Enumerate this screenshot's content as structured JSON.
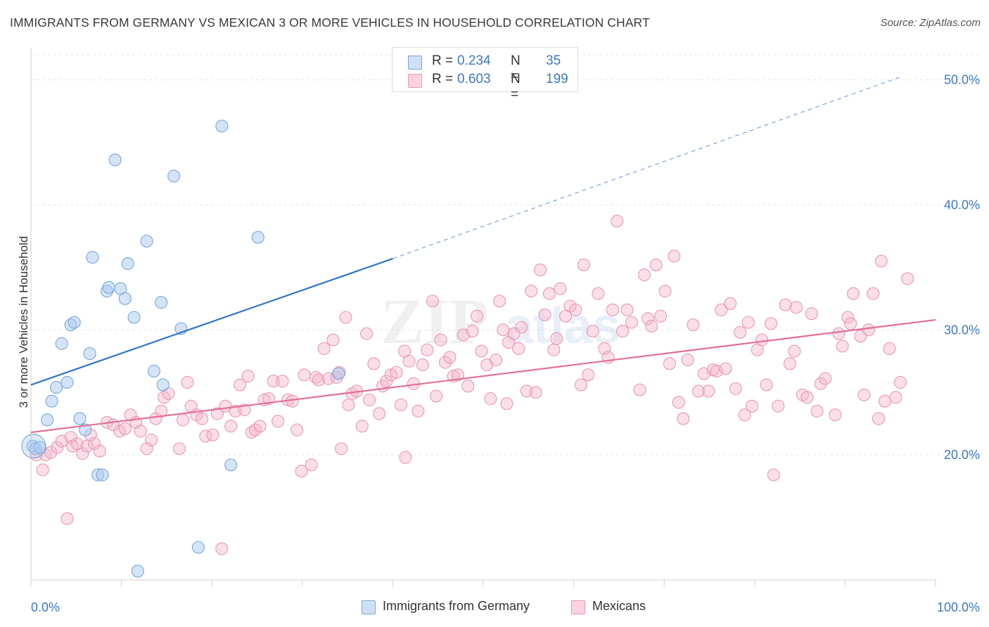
{
  "header": {
    "title": "IMMIGRANTS FROM GERMANY VS MEXICAN 3 OR MORE VEHICLES IN HOUSEHOLD CORRELATION CHART",
    "source": "Source: ZipAtlas.com"
  },
  "legend_top": {
    "rows": [
      {
        "r_label": "R =",
        "r_value": "0.234",
        "n_label": "N =",
        "n_value": "35",
        "color": "#a9c9f0"
      },
      {
        "r_label": "R =",
        "r_value": "0.603",
        "n_label": "N =",
        "n_value": "199",
        "color": "#f5b6cb"
      }
    ]
  },
  "legend_bottom": {
    "items": [
      {
        "label": "Immigrants from Germany",
        "color": "#a9c9f0"
      },
      {
        "label": "Mexicans",
        "color": "#f5b6cb"
      }
    ]
  },
  "watermark": {
    "zip": "ZIP",
    "atlas": "atlas"
  },
  "chart_data": {
    "type": "scatter",
    "title": "IMMIGRANTS FROM GERMANY VS MEXICAN 3 OR MORE VEHICLES IN HOUSEHOLD CORRELATION CHART",
    "xlabel": "",
    "ylabel": "3 or more Vehicles in Household",
    "xlim": [
      0,
      100
    ],
    "ylim": [
      10,
      52
    ],
    "x_tick_labels": [
      "0.0%",
      "100.0%"
    ],
    "y_ticks": [
      20,
      30,
      40,
      50
    ],
    "y_tick_labels": [
      "20.0%",
      "30.0%",
      "40.0%",
      "50.0%"
    ],
    "grid": true,
    "legend_position": "top-center",
    "colors": {
      "germany_fill": "#a9c9f0",
      "germany_stroke": "#7aa6d8",
      "germany_line": "#2f74c8",
      "mexico_fill": "#f5b6cb",
      "mexico_stroke": "#e89ab3",
      "mexico_line": "#e26f98",
      "axis_label": "#3b78c6",
      "grid": "#e6e6e6"
    },
    "series": [
      {
        "name": "Immigrants from Germany",
        "r": 0.234,
        "n": 35,
        "trend": {
          "x0": 0,
          "y0": 25.6,
          "x1": 40,
          "y1": 35.7,
          "dash_to_x": 96,
          "dash_to_y": 50.2
        },
        "points": [
          [
            0.2,
            20.7
          ],
          [
            0.5,
            20.5
          ],
          [
            1.0,
            20.6
          ],
          [
            1.8,
            22.8
          ],
          [
            2.3,
            24.3
          ],
          [
            2.8,
            25.4
          ],
          [
            3.4,
            28.9
          ],
          [
            4.0,
            25.8
          ],
          [
            4.4,
            30.4
          ],
          [
            4.8,
            30.6
          ],
          [
            5.4,
            22.9
          ],
          [
            6.0,
            22.0
          ],
          [
            6.5,
            28.1
          ],
          [
            6.8,
            35.8
          ],
          [
            7.4,
            18.4
          ],
          [
            7.9,
            18.4
          ],
          [
            8.4,
            33.1
          ],
          [
            8.6,
            33.4
          ],
          [
            9.3,
            43.6
          ],
          [
            9.9,
            33.3
          ],
          [
            10.4,
            32.5
          ],
          [
            10.7,
            35.3
          ],
          [
            11.4,
            31.0
          ],
          [
            11.8,
            10.7
          ],
          [
            12.8,
            37.1
          ],
          [
            13.6,
            26.7
          ],
          [
            14.4,
            32.2
          ],
          [
            14.6,
            25.6
          ],
          [
            15.8,
            42.3
          ],
          [
            16.6,
            30.1
          ],
          [
            18.5,
            12.6
          ],
          [
            21.1,
            46.3
          ],
          [
            22.1,
            19.2
          ],
          [
            25.1,
            37.4
          ],
          [
            34.0,
            26.5
          ]
        ]
      },
      {
        "name": "Mexicans",
        "r": 0.603,
        "n": 199,
        "trend": {
          "x0": 0,
          "y0": 21.8,
          "x1": 100,
          "y1": 30.8
        },
        "points": [
          [
            0.6,
            20.0
          ],
          [
            1.3,
            18.8
          ],
          [
            1.6,
            20.0
          ],
          [
            2.2,
            20.2
          ],
          [
            2.9,
            20.6
          ],
          [
            3.4,
            21.1
          ],
          [
            4.0,
            14.9
          ],
          [
            4.4,
            21.4
          ],
          [
            4.6,
            20.7
          ],
          [
            5.1,
            20.9
          ],
          [
            5.7,
            20.1
          ],
          [
            6.2,
            20.7
          ],
          [
            6.6,
            21.6
          ],
          [
            7.0,
            20.9
          ],
          [
            7.6,
            20.3
          ],
          [
            8.4,
            22.6
          ],
          [
            9.1,
            22.4
          ],
          [
            9.8,
            21.9
          ],
          [
            10.4,
            22.1
          ],
          [
            11.0,
            23.2
          ],
          [
            11.6,
            22.6
          ],
          [
            12.1,
            21.9
          ],
          [
            12.8,
            20.5
          ],
          [
            13.3,
            21.2
          ],
          [
            13.8,
            22.9
          ],
          [
            14.4,
            23.5
          ],
          [
            14.7,
            24.6
          ],
          [
            15.2,
            24.9
          ],
          [
            16.4,
            20.5
          ],
          [
            16.8,
            22.8
          ],
          [
            17.3,
            25.8
          ],
          [
            17.7,
            23.9
          ],
          [
            18.3,
            23.2
          ],
          [
            18.9,
            22.9
          ],
          [
            19.3,
            21.5
          ],
          [
            20.1,
            21.6
          ],
          [
            20.6,
            23.3
          ],
          [
            21.1,
            12.5
          ],
          [
            21.5,
            23.9
          ],
          [
            22.1,
            22.3
          ],
          [
            22.6,
            23.5
          ],
          [
            23.1,
            25.6
          ],
          [
            23.6,
            23.6
          ],
          [
            24.0,
            26.3
          ],
          [
            24.4,
            21.8
          ],
          [
            24.8,
            22.0
          ],
          [
            25.3,
            22.3
          ],
          [
            25.8,
            24.4
          ],
          [
            26.3,
            24.5
          ],
          [
            26.8,
            25.9
          ],
          [
            27.3,
            22.7
          ],
          [
            27.8,
            25.9
          ],
          [
            28.4,
            24.4
          ],
          [
            28.9,
            24.3
          ],
          [
            29.4,
            22.0
          ],
          [
            29.9,
            18.7
          ],
          [
            30.2,
            26.4
          ],
          [
            31.0,
            19.2
          ],
          [
            31.5,
            26.2
          ],
          [
            31.8,
            26.0
          ],
          [
            32.4,
            28.5
          ],
          [
            32.9,
            26.1
          ],
          [
            33.4,
            29.2
          ],
          [
            33.8,
            26.2
          ],
          [
            34.1,
            26.6
          ],
          [
            34.3,
            20.5
          ],
          [
            34.8,
            31.0
          ],
          [
            35.1,
            24.0
          ],
          [
            35.5,
            24.9
          ],
          [
            36.0,
            25.1
          ],
          [
            36.6,
            22.3
          ],
          [
            37.1,
            29.7
          ],
          [
            37.4,
            24.4
          ],
          [
            37.9,
            27.3
          ],
          [
            38.5,
            23.3
          ],
          [
            38.9,
            25.5
          ],
          [
            39.3,
            25.9
          ],
          [
            39.8,
            26.4
          ],
          [
            40.4,
            26.6
          ],
          [
            40.9,
            24.0
          ],
          [
            41.3,
            28.3
          ],
          [
            41.8,
            27.5
          ],
          [
            42.3,
            25.7
          ],
          [
            42.8,
            23.5
          ],
          [
            43.3,
            27.2
          ],
          [
            43.8,
            28.4
          ],
          [
            44.4,
            32.3
          ],
          [
            44.8,
            24.7
          ],
          [
            45.3,
            29.2
          ],
          [
            45.8,
            27.4
          ],
          [
            46.3,
            27.8
          ],
          [
            46.7,
            26.3
          ],
          [
            47.2,
            26.4
          ],
          [
            47.8,
            29.6
          ],
          [
            48.3,
            25.5
          ],
          [
            48.8,
            29.9
          ],
          [
            49.3,
            31.1
          ],
          [
            49.8,
            28.3
          ],
          [
            50.4,
            27.2
          ],
          [
            50.8,
            24.5
          ],
          [
            51.4,
            27.6
          ],
          [
            51.8,
            32.3
          ],
          [
            52.2,
            30.0
          ],
          [
            52.8,
            29.0
          ],
          [
            53.4,
            29.7
          ],
          [
            53.9,
            28.5
          ],
          [
            54.2,
            30.2
          ],
          [
            54.8,
            25.1
          ],
          [
            55.3,
            33.1
          ],
          [
            55.8,
            25.0
          ],
          [
            56.3,
            34.8
          ],
          [
            56.8,
            31.2
          ],
          [
            57.3,
            32.9
          ],
          [
            57.8,
            28.4
          ],
          [
            58.1,
            29.3
          ],
          [
            58.5,
            33.3
          ],
          [
            59.1,
            31.1
          ],
          [
            59.6,
            31.9
          ],
          [
            60.2,
            31.6
          ],
          [
            60.8,
            25.6
          ],
          [
            61.1,
            35.2
          ],
          [
            61.6,
            26.4
          ],
          [
            62.1,
            29.9
          ],
          [
            62.7,
            32.9
          ],
          [
            63.4,
            28.5
          ],
          [
            63.8,
            27.8
          ],
          [
            64.3,
            31.6
          ],
          [
            64.8,
            38.7
          ],
          [
            65.4,
            29.9
          ],
          [
            65.9,
            31.6
          ],
          [
            66.4,
            30.6
          ],
          [
            67.3,
            25.2
          ],
          [
            67.8,
            34.4
          ],
          [
            68.2,
            30.9
          ],
          [
            68.6,
            30.3
          ],
          [
            69.1,
            35.2
          ],
          [
            69.6,
            31.1
          ],
          [
            70.1,
            33.1
          ],
          [
            70.6,
            27.3
          ],
          [
            71.1,
            35.9
          ],
          [
            71.6,
            24.2
          ],
          [
            72.1,
            22.9
          ],
          [
            72.6,
            27.6
          ],
          [
            73.2,
            30.4
          ],
          [
            73.8,
            25.1
          ],
          [
            74.4,
            26.5
          ],
          [
            74.9,
            25.1
          ],
          [
            75.4,
            26.8
          ],
          [
            75.8,
            26.7
          ],
          [
            76.3,
            31.6
          ],
          [
            76.8,
            26.9
          ],
          [
            77.3,
            32.1
          ],
          [
            77.9,
            25.3
          ],
          [
            78.4,
            29.8
          ],
          [
            78.9,
            23.2
          ],
          [
            79.3,
            30.6
          ],
          [
            79.7,
            23.9
          ],
          [
            80.3,
            28.4
          ],
          [
            80.8,
            29.2
          ],
          [
            81.3,
            25.6
          ],
          [
            81.8,
            30.5
          ],
          [
            82.1,
            18.4
          ],
          [
            82.6,
            23.9
          ],
          [
            83.4,
            32.0
          ],
          [
            83.9,
            27.3
          ],
          [
            84.4,
            28.3
          ],
          [
            84.6,
            31.8
          ],
          [
            85.3,
            24.8
          ],
          [
            85.8,
            24.6
          ],
          [
            86.3,
            31.3
          ],
          [
            86.9,
            23.5
          ],
          [
            87.3,
            25.7
          ],
          [
            87.8,
            26.1
          ],
          [
            88.9,
            23.2
          ],
          [
            89.3,
            29.7
          ],
          [
            89.7,
            28.7
          ],
          [
            90.3,
            31.0
          ],
          [
            90.6,
            30.5
          ],
          [
            90.9,
            32.9
          ],
          [
            91.7,
            29.5
          ],
          [
            92.1,
            24.8
          ],
          [
            92.6,
            30.0
          ],
          [
            93.1,
            32.9
          ],
          [
            93.7,
            22.9
          ],
          [
            94.0,
            35.5
          ],
          [
            94.4,
            24.3
          ],
          [
            94.9,
            28.5
          ],
          [
            95.6,
            24.6
          ],
          [
            96.1,
            25.8
          ],
          [
            96.9,
            34.1
          ],
          [
            41.4,
            19.8
          ],
          [
            52.6,
            24.1
          ]
        ]
      }
    ]
  }
}
